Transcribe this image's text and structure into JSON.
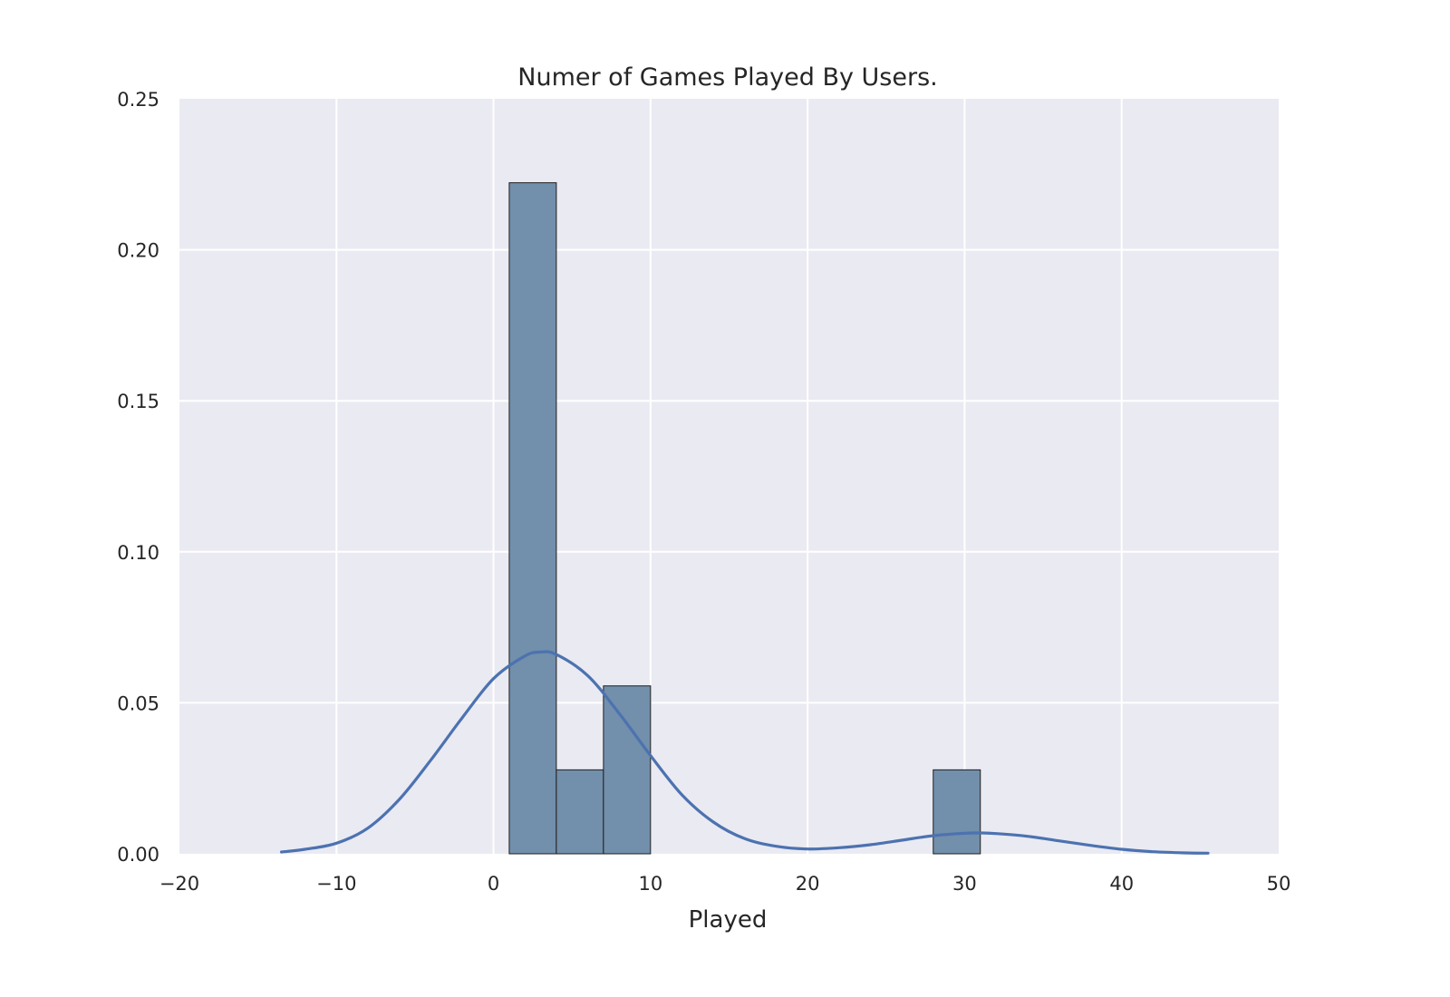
{
  "chart_data": {
    "type": "bar",
    "title": "Numer of Games Played By Users.",
    "xlabel": "Played",
    "ylabel": "",
    "xlim": [
      -20,
      50
    ],
    "ylim": [
      0,
      0.25
    ],
    "xticks": [
      -20,
      -10,
      0,
      10,
      20,
      30,
      40,
      50
    ],
    "xtick_labels": [
      "−20",
      "−10",
      "0",
      "10",
      "20",
      "30",
      "40",
      "50"
    ],
    "yticks": [
      0,
      0.05,
      0.1,
      0.15,
      0.2,
      0.25
    ],
    "ytick_labels": [
      "0.00",
      "0.05",
      "0.10",
      "0.15",
      "0.20",
      "0.25"
    ],
    "grid": true,
    "legend": "none",
    "histogram": {
      "bins": [
        {
          "x0": 1,
          "x1": 4,
          "density": 0.2222
        },
        {
          "x0": 4,
          "x1": 7,
          "density": 0.0278
        },
        {
          "x0": 7,
          "x1": 10,
          "density": 0.0556
        },
        {
          "x0": 10,
          "x1": 13,
          "density": 0
        },
        {
          "x0": 13,
          "x1": 16,
          "density": 0
        },
        {
          "x0": 16,
          "x1": 19,
          "density": 0
        },
        {
          "x0": 19,
          "x1": 22,
          "density": 0
        },
        {
          "x0": 22,
          "x1": 25,
          "density": 0
        },
        {
          "x0": 25,
          "x1": 28,
          "density": 0
        },
        {
          "x0": 28,
          "x1": 31,
          "density": 0.0278
        }
      ]
    },
    "kde": {
      "x": [
        -13.5,
        -12,
        -10,
        -8,
        -6,
        -4,
        -2,
        0,
        2,
        3,
        4,
        6,
        8,
        10,
        12,
        14,
        16,
        18,
        20,
        22,
        24,
        26,
        28,
        30,
        31,
        32,
        34,
        36,
        38,
        40,
        42,
        44,
        45.5
      ],
      "y": [
        0.0006,
        0.0015,
        0.0035,
        0.0085,
        0.018,
        0.031,
        0.045,
        0.058,
        0.0655,
        0.0668,
        0.066,
        0.059,
        0.0465,
        0.0325,
        0.0195,
        0.0105,
        0.005,
        0.0025,
        0.0016,
        0.002,
        0.003,
        0.0045,
        0.006,
        0.0068,
        0.0069,
        0.0067,
        0.0058,
        0.0043,
        0.0028,
        0.0015,
        0.0007,
        0.0003,
        0.0002
      ]
    },
    "colors": {
      "background": "#eaeaf2",
      "bar": "#728fab",
      "line": "#4c72b0"
    }
  }
}
